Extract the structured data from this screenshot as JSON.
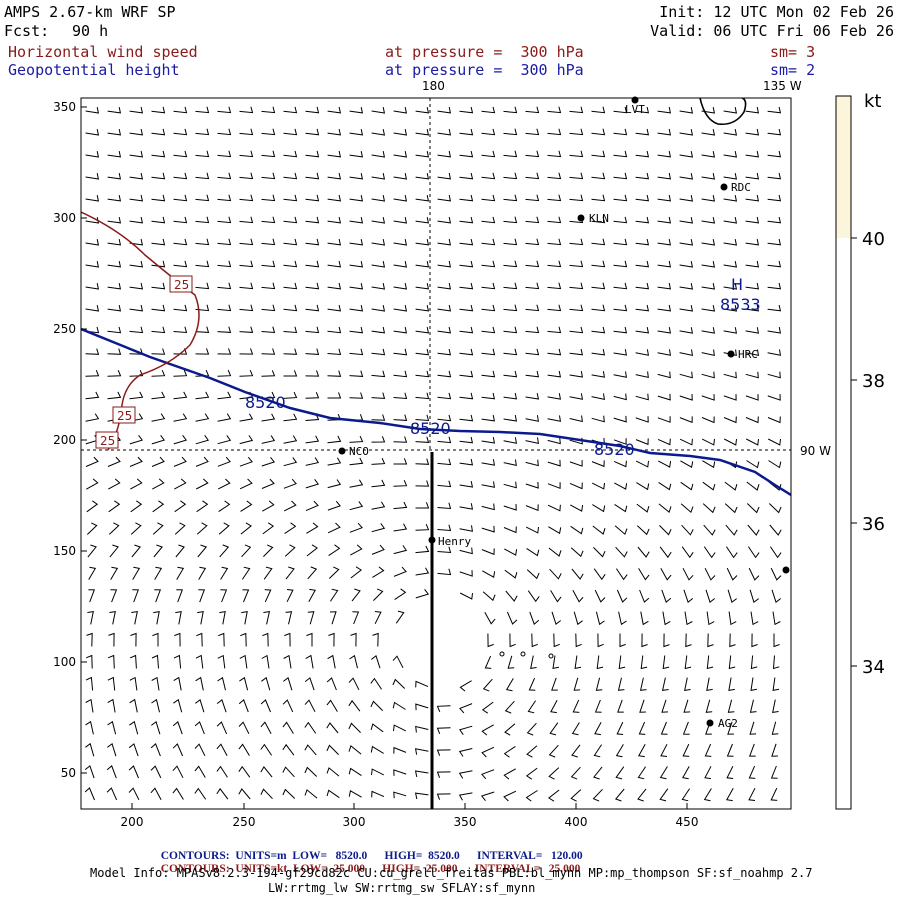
{
  "header": {
    "model": "AMPS 2.67-km WRF SP",
    "fcst_label": "Fcst:",
    "fcst_value": "90 h",
    "init": "Init: 12 UTC Mon 02 Feb 26",
    "valid": "Valid: 06 UTC Fri 06 Feb 26",
    "field1_name": "Horizontal wind speed",
    "field1_level": "at pressure =  300 hPa",
    "field1_sm": "sm= 3",
    "field2_name": "Geopotential height",
    "field2_level": "at pressure =  300 hPa",
    "field2_sm": "sm= 2"
  },
  "map": {
    "x_ticks": [
      "200",
      "250",
      "300",
      "350",
      "400",
      "450"
    ],
    "y_ticks": [
      "350",
      "300",
      "250",
      "200",
      "150",
      "100",
      "50"
    ],
    "meridian_top": "180",
    "meridian_corner": "135 W",
    "meridian_right": "90 W",
    "height_label": "8520",
    "high_marker": "H",
    "high_value": "8533",
    "wind_label": "25",
    "stations": [
      {
        "name": "LVT"
      },
      {
        "name": "RDC"
      },
      {
        "name": "KLN"
      },
      {
        "name": "HRC"
      },
      {
        "name": "NCO"
      },
      {
        "name": "Henry"
      },
      {
        "name": "AG2"
      }
    ],
    "colors": {
      "height": "#0b1a8c",
      "wind": "#8b1a1a",
      "colorbar_fill": "#fbf5dc"
    }
  },
  "colorbar": {
    "unit": "kt",
    "labels": [
      "40",
      "38",
      "36",
      "34"
    ]
  },
  "footer": {
    "row1": {
      "label": "CONTOURS:",
      "units": "UNITS=m",
      "low": "LOW=   8520.0",
      "high": "HIGH=  8520.0",
      "interval": "INTERVAL=   120.00"
    },
    "row2": {
      "label": "CONTOURS:",
      "units": "UNITS=kt",
      "low": "LOW=  25.000",
      "high": "HIGH=  25.000",
      "interval": "INTERVAL=   25.000"
    },
    "model_info": "Model Info: MPASv8.2.3-194-gf29cd82c CU:cu_grell_freitas PBL:bl_mynn MP:mp_thompson SF:sf_noahmp 2.7",
    "model_info2": "LW:rrtmg_lw SW:rrtmg_sw SFLAY:sf_mynn"
  }
}
